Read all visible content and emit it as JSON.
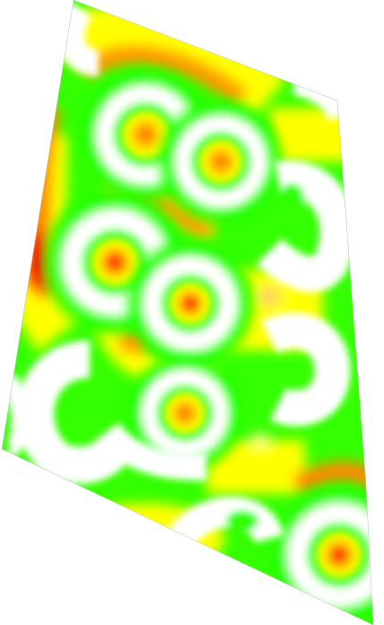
{
  "image": {
    "kind": "colored density surface on a skewed quadrilateral",
    "palette": {
      "background": "#ffffff",
      "low": "#ffffff",
      "mid_low": "#00ff00",
      "mid": "#ffff00",
      "mid_high": "#ff9900",
      "high": "#ff0000"
    },
    "blobs": [
      {
        "id": "ring-a",
        "center_level": "red",
        "ring_level": "white"
      },
      {
        "id": "ring-b",
        "center_level": "red",
        "ring_level": "white"
      },
      {
        "id": "ring-c",
        "center_level": "orange",
        "ring_level": "white"
      },
      {
        "id": "ring-d",
        "center_level": "orange",
        "ring_level": "white"
      },
      {
        "id": "ring-e",
        "center_level": "orange",
        "ring_level": "white"
      },
      {
        "id": "ring-f",
        "center_level": "red",
        "ring_level": "white"
      },
      {
        "id": "arc-left",
        "center_level": "green",
        "ring_level": "white"
      },
      {
        "id": "arc-right",
        "center_level": "yellow",
        "ring_level": "white"
      }
    ]
  }
}
